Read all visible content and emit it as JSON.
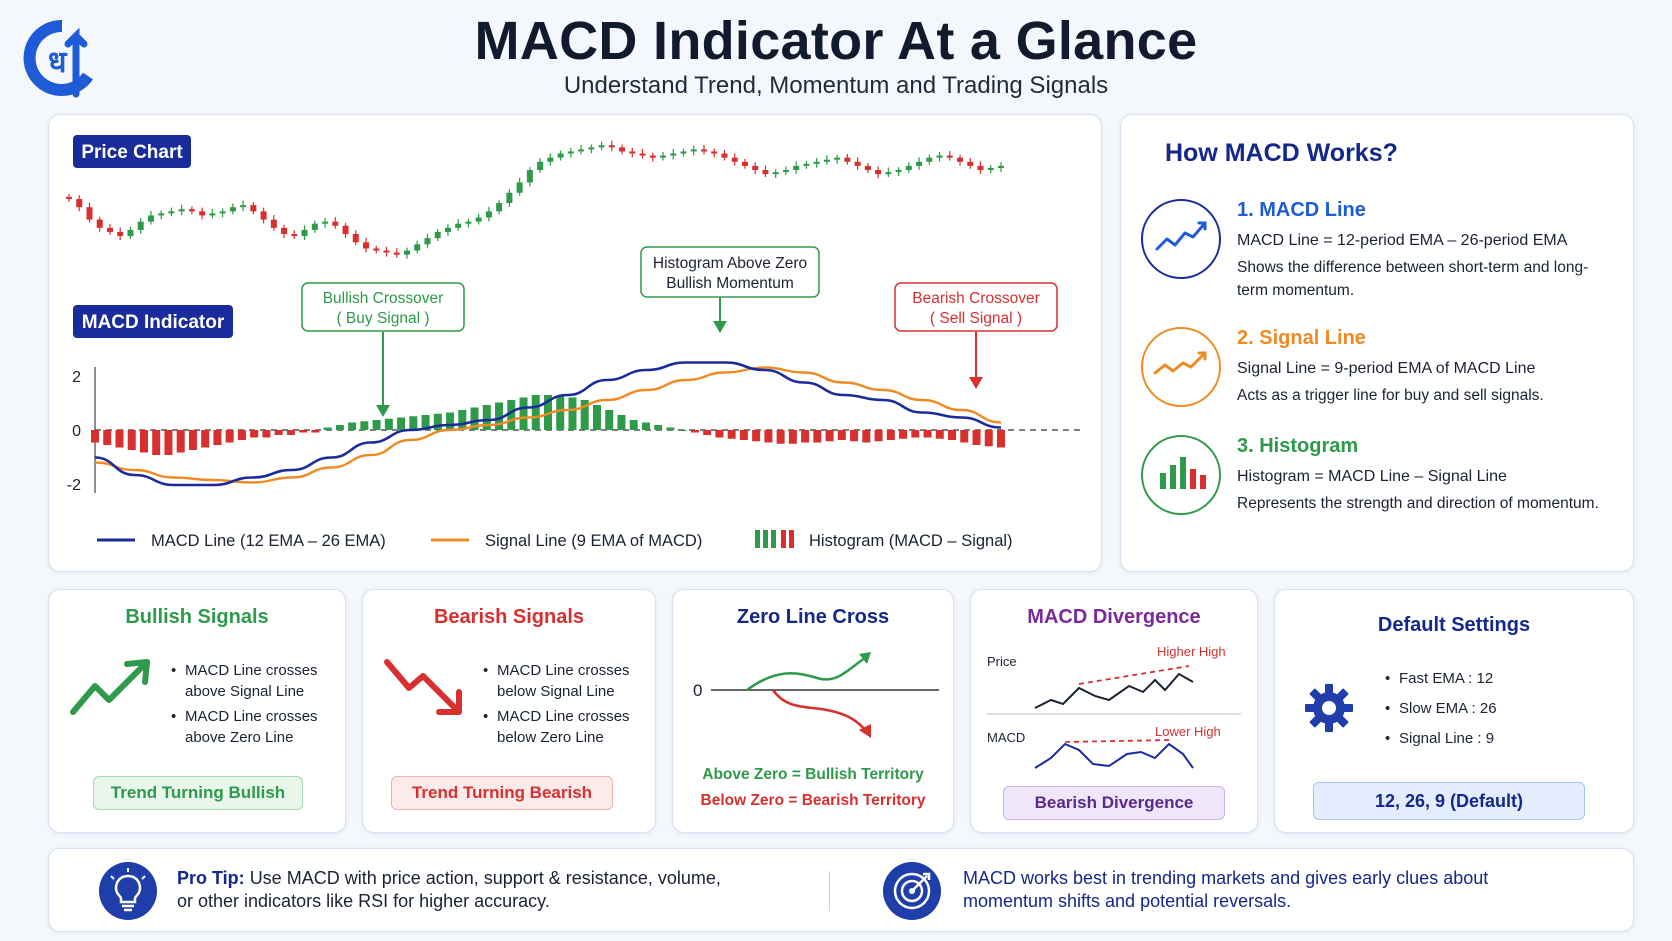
{
  "header": {
    "title": "MACD Indicator At a Glance",
    "subtitle": "Understand Trend, Momentum and Trading Signals"
  },
  "colors": {
    "macd": "#1a2b9c",
    "signal": "#f08a24",
    "bull": "#2e9a4a",
    "bear": "#d7302f",
    "navy": "#13288a"
  },
  "main_chart": {
    "price_label": "Price Chart",
    "macd_label": "MACD Indicator",
    "callouts": {
      "bullish": [
        "Bullish Crossover",
        "( Buy Signal )"
      ],
      "histogram": [
        "Histogram Above Zero",
        "Bullish Momentum"
      ],
      "bearish": [
        "Bearish Crossover",
        "( Sell Signal )"
      ]
    },
    "legend": {
      "macd": "MACD Line (12 EMA – 26 EMA)",
      "signal": "Signal Line (9 EMA of MACD)",
      "histogram": "Histogram (MACD – Signal)"
    }
  },
  "chart_data": [
    {
      "type": "candlestick",
      "title": "Price Chart",
      "closes": [
        52,
        48,
        42,
        38,
        36,
        34,
        37,
        41,
        44,
        45,
        46,
        47,
        46,
        44,
        45,
        46,
        48,
        49,
        46,
        42,
        38,
        35,
        34,
        37,
        40,
        41,
        39,
        35,
        31,
        28,
        27,
        26,
        25,
        27,
        30,
        33,
        36,
        38,
        40,
        41,
        43,
        46,
        50,
        55,
        60,
        66,
        70,
        72,
        74,
        75,
        76,
        77,
        78,
        77,
        75,
        74,
        73,
        72,
        73,
        74,
        75,
        76,
        75,
        74,
        72,
        70,
        68,
        66,
        64,
        65,
        66,
        68,
        69,
        70,
        71,
        72,
        70,
        68,
        66,
        64,
        65,
        66,
        68,
        70,
        72,
        73,
        72,
        70,
        68,
        66,
        67,
        68
      ],
      "ylim": [
        20,
        82
      ]
    },
    {
      "type": "line",
      "title": "MACD Indicator",
      "x": [
        0,
        4,
        8,
        12,
        16,
        20,
        24,
        28,
        32,
        36,
        40,
        44,
        48,
        52,
        56,
        60,
        64,
        68,
        72,
        76,
        80,
        84,
        88,
        92
      ],
      "series": [
        {
          "name": "MACD Line (12 EMA – 26 EMA)",
          "values": [
            -1.1,
            -1.8,
            -2.2,
            -2.2,
            -1.9,
            -1.6,
            -1.1,
            -0.5,
            0,
            0.2,
            0.4,
            0.9,
            1.4,
            2.0,
            2.4,
            2.7,
            2.7,
            2.4,
            1.9,
            1.4,
            1.2,
            0.7,
            0.5,
            0.1
          ]
        },
        {
          "name": "Signal Line (9 EMA of MACD)",
          "values": [
            -1.3,
            -1.6,
            -1.9,
            -2.0,
            -2.1,
            -1.9,
            -1.5,
            -1.0,
            -0.4,
            0,
            0.2,
            0.5,
            0.8,
            1.2,
            1.6,
            2.0,
            2.3,
            2.5,
            2.3,
            1.9,
            1.6,
            1.2,
            0.8,
            0.3
          ]
        }
      ],
      "histogram_name": "Histogram (MACD – Signal)",
      "histogram": [
        -0.5,
        -0.6,
        -0.7,
        -0.8,
        -0.9,
        -1.0,
        -1.0,
        -0.9,
        -0.8,
        -0.7,
        -0.6,
        -0.5,
        -0.4,
        -0.3,
        -0.3,
        -0.2,
        -0.2,
        -0.1,
        -0.1,
        0.1,
        0.2,
        0.3,
        0.35,
        0.4,
        0.45,
        0.5,
        0.55,
        0.6,
        0.65,
        0.7,
        0.8,
        0.9,
        1.0,
        1.1,
        1.2,
        1.3,
        1.4,
        1.4,
        1.35,
        1.3,
        1.2,
        1.0,
        0.8,
        0.6,
        0.4,
        0.3,
        0.2,
        0.1,
        0,
        -0.1,
        -0.2,
        -0.3,
        -0.35,
        -0.4,
        -0.45,
        -0.5,
        -0.55,
        -0.55,
        -0.5,
        -0.5,
        -0.45,
        -0.4,
        -0.45,
        -0.5,
        -0.45,
        -0.4,
        -0.35,
        -0.3,
        -0.3,
        -0.35,
        -0.4,
        -0.5,
        -0.6,
        -0.65,
        -0.7
      ],
      "yticks": [
        "2",
        "0",
        "-2"
      ],
      "ylim": [
        -2.2,
        2.2
      ]
    }
  ],
  "how_macd": {
    "title": "How MACD Works?",
    "items": [
      {
        "head": "1. MACD Line",
        "formula": "MACD Line = 12-period EMA – 26-period EMA",
        "desc": "Shows the difference between short-term and long-term momentum."
      },
      {
        "head": "2. Signal Line",
        "formula": "Signal Line = 9-period EMA of MACD Line",
        "desc": "Acts as a trigger line for buy and sell signals."
      },
      {
        "head": "3. Histogram",
        "formula": "Histogram = MACD Line – Signal Line",
        "desc": "Represents the strength and direction of momentum."
      }
    ]
  },
  "bullish": {
    "title": "Bullish Signals",
    "items": [
      "MACD Line crosses above Signal Line",
      "MACD Line crosses above Zero Line"
    ],
    "pill": "Trend Turning Bullish"
  },
  "bearish": {
    "title": "Bearish Signals",
    "items": [
      "MACD Line crosses below Signal Line",
      "MACD Line crosses below Zero Line"
    ],
    "pill": "Trend Turning Bearish"
  },
  "zero_line": {
    "title": "Zero Line Cross",
    "zero": "0",
    "above": "Above Zero = Bullish Territory",
    "below": "Below Zero = Bearish Territory"
  },
  "divergence": {
    "title": "MACD Divergence",
    "price": "Price",
    "macd": "MACD",
    "higher_high": "Higher High",
    "lower_high": "Lower High",
    "pill": "Bearish Divergence"
  },
  "settings": {
    "title": "Default Settings",
    "items": [
      "Fast EMA :  12",
      "Slow EMA :  26",
      "Signal Line :  9"
    ],
    "pill": "12, 26, 9 (Default)"
  },
  "tips": {
    "pro_label": "Pro Tip:",
    "pro_line1": "Use MACD with price action, support & resistance, volume,",
    "pro_line2": "or other indicators like RSI for higher accuracy.",
    "note_line1": "MACD works best in trending markets and gives early clues about",
    "note_line2": "momentum shifts and potential reversals."
  }
}
